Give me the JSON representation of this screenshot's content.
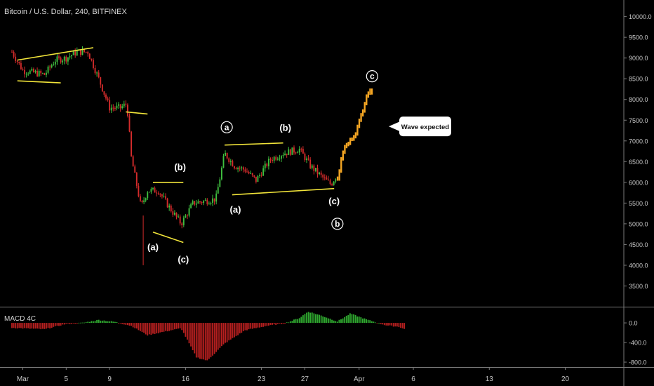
{
  "header": {
    "title": "Bitcoin / U.S. Dollar, 240, BITFINEX"
  },
  "macd": {
    "label": "MACD 4C"
  },
  "callout": {
    "label": "Wave expected"
  },
  "colors": {
    "up": "#3fbf3f",
    "down": "#d42b2b",
    "projection": "#f5a623",
    "pattern": "#f2e53a",
    "background": "#000000"
  },
  "chart_data": [
    {
      "type": "candlestick",
      "title": "Bitcoin / U.S. Dollar, 240, BITFINEX",
      "ylim": [
        3000,
        10400
      ],
      "y_ticks": [
        "10000.0",
        "9500.0",
        "9000.0",
        "8500.0",
        "8000.0",
        "7500.0",
        "7000.0",
        "6500.0",
        "6000.0",
        "5500.0",
        "5000.0",
        "4500.0",
        "4000.0",
        "3500.0"
      ],
      "x_ticks": [
        "Mar",
        "5",
        "9",
        "16",
        "23",
        "27",
        "Apr",
        "6",
        "13",
        "20"
      ],
      "x_days": [
        1,
        5,
        9,
        16,
        23,
        27,
        32,
        37,
        44,
        51
      ],
      "xlim": [
        -1.1,
        56.4
      ],
      "price_path": [
        [
          0,
          9150
        ],
        [
          1,
          8700
        ],
        [
          2,
          8650
        ],
        [
          3,
          8600
        ],
        [
          4,
          8950
        ],
        [
          5,
          9000
        ],
        [
          6,
          9150
        ],
        [
          7,
          9150
        ],
        [
          8,
          8500
        ],
        [
          9,
          7800
        ],
        [
          10,
          7800
        ],
        [
          10.6,
          7900
        ],
        [
          11,
          6600
        ],
        [
          11.9,
          5400
        ],
        [
          12.5,
          5800
        ],
        [
          13.5,
          5800
        ],
        [
          14.5,
          5400
        ],
        [
          15.6,
          5000
        ],
        [
          16.7,
          5500
        ],
        [
          17.8,
          5550
        ],
        [
          18.8,
          5600
        ],
        [
          19.6,
          6700
        ],
        [
          20.5,
          6400
        ],
        [
          21.5,
          6300
        ],
        [
          22.5,
          6050
        ],
        [
          23.8,
          6550
        ],
        [
          25,
          6700
        ],
        [
          26.5,
          6800
        ],
        [
          27.5,
          6400
        ],
        [
          28.7,
          6100
        ],
        [
          29.4,
          5950
        ],
        [
          30,
          6200
        ]
      ],
      "projection_path": [
        [
          30,
          6100
        ],
        [
          30.6,
          6900
        ],
        [
          31.5,
          7100
        ],
        [
          32.2,
          7600
        ],
        [
          32.8,
          8200
        ],
        [
          33.2,
          8150
        ]
      ],
      "patterns": [
        [
          [
            0.5,
            8950
          ],
          [
            7.5,
            9250
          ]
        ],
        [
          [
            0.5,
            8450
          ],
          [
            4.5,
            8400
          ]
        ],
        [
          [
            10.5,
            7700
          ],
          [
            12.5,
            7650
          ]
        ],
        [
          [
            13,
            6000
          ],
          [
            15.8,
            6000
          ]
        ],
        [
          [
            13,
            4800
          ],
          [
            15.8,
            4550
          ]
        ],
        [
          [
            19.6,
            6900
          ],
          [
            25,
            6950
          ]
        ],
        [
          [
            20.3,
            5700
          ],
          [
            29.7,
            5850
          ]
        ]
      ],
      "wave_labels": [
        {
          "text": "(a)",
          "x": 13,
          "y": 4450,
          "circled": false
        },
        {
          "text": "(b)",
          "x": 15.5,
          "y": 6380,
          "circled": false
        },
        {
          "text": "(c)",
          "x": 15.8,
          "y": 4150,
          "circled": false
        },
        {
          "text": "a",
          "x": 19.8,
          "y": 7330,
          "circled": true
        },
        {
          "text": "(b)",
          "x": 25.2,
          "y": 7330,
          "circled": false
        },
        {
          "text": "(a)",
          "x": 20.6,
          "y": 5350,
          "circled": false
        },
        {
          "text": "(c)",
          "x": 29.7,
          "y": 5560,
          "circled": false
        },
        {
          "text": "b",
          "x": 30,
          "y": 5000,
          "circled": true
        },
        {
          "text": "c",
          "x": 33.2,
          "y": 8560,
          "circled": true
        }
      ],
      "callout_at": [
        35.7,
        7350
      ]
    },
    {
      "type": "histogram",
      "name": "MACD 4C",
      "ylim": [
        -900,
        330
      ],
      "y_ticks": [
        "0.0",
        "-400.0",
        "-800.0"
      ],
      "histogram_path": [
        [
          0,
          -100
        ],
        [
          3,
          -130
        ],
        [
          5,
          -20
        ],
        [
          6.5,
          0
        ],
        [
          8,
          60
        ],
        [
          9.5,
          20
        ],
        [
          11,
          -60
        ],
        [
          12.5,
          -250
        ],
        [
          14,
          -180
        ],
        [
          15.6,
          -110
        ],
        [
          17,
          -700
        ],
        [
          18,
          -770
        ],
        [
          19.6,
          -420
        ],
        [
          21.5,
          -150
        ],
        [
          23.5,
          -60
        ],
        [
          25.2,
          -5
        ],
        [
          26.5,
          100
        ],
        [
          27.3,
          230
        ],
        [
          28.5,
          150
        ],
        [
          30,
          30
        ],
        [
          31.2,
          190
        ],
        [
          32.8,
          60
        ],
        [
          34.5,
          -50
        ],
        [
          35.7,
          -80
        ],
        [
          36.2,
          -130
        ]
      ]
    }
  ]
}
